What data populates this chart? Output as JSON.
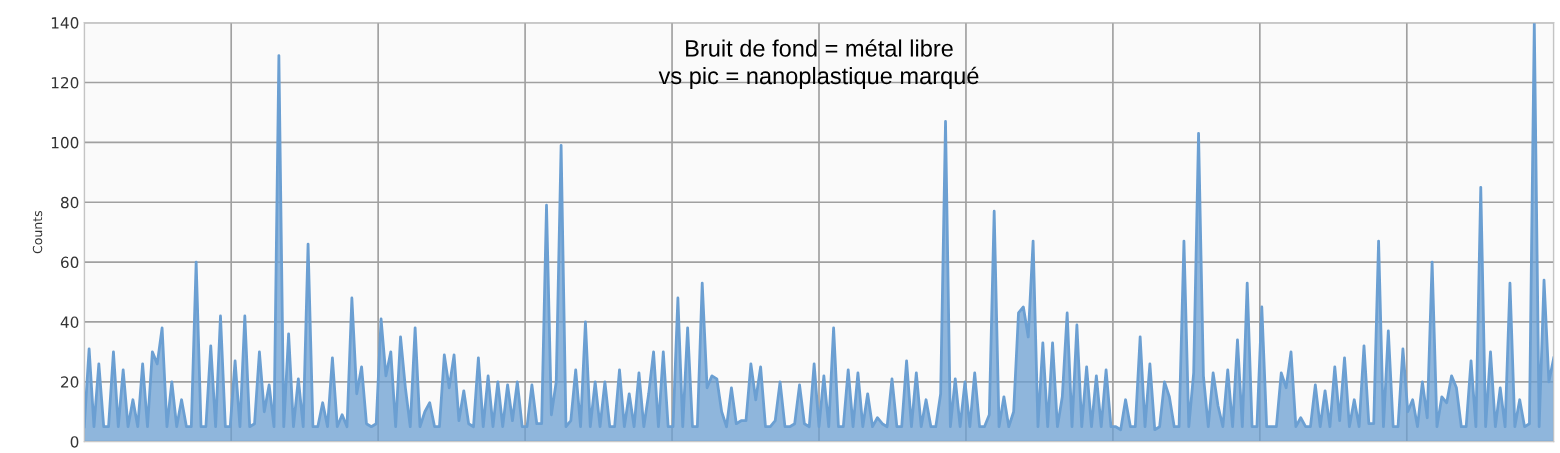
{
  "chart_data": {
    "type": "area",
    "ylabel": "Counts",
    "annotations": [
      "Bruit de fond = métal libre\nvs pic = nanoplastique marqué"
    ],
    "categories": [
      null,
      null,
      null,
      null,
      null,
      null,
      null,
      null,
      null,
      null,
      null,
      null,
      null,
      null,
      null,
      null,
      null,
      null,
      null,
      null,
      null,
      null,
      null,
      null,
      null,
      null,
      null,
      null,
      null,
      null,
      null,
      null,
      null,
      null,
      null,
      null,
      null,
      null,
      null,
      null,
      null,
      null,
      null,
      null,
      null,
      null,
      null,
      null,
      null,
      null,
      null,
      null,
      null,
      null,
      null,
      null,
      null,
      null,
      null,
      null,
      null,
      null,
      null,
      null,
      null,
      null,
      null,
      null,
      null,
      null,
      null,
      null,
      null,
      null,
      null,
      null,
      null,
      null,
      null,
      null,
      null,
      null,
      null,
      null,
      null,
      null,
      null,
      null,
      null,
      null,
      null,
      null,
      null,
      null,
      null,
      null,
      null,
      null,
      null,
      null,
      null,
      null,
      null,
      null,
      null,
      null,
      null,
      null,
      null,
      null,
      null,
      null,
      null,
      null,
      null,
      null,
      null,
      null,
      null,
      null,
      null,
      null,
      null,
      null,
      null,
      null,
      null,
      null,
      null,
      null,
      null,
      null,
      null,
      null,
      null,
      null,
      null,
      null,
      null,
      null,
      null,
      null,
      null,
      null,
      null,
      null,
      null,
      null,
      null,
      null,
      null,
      null,
      null,
      null,
      null,
      null,
      null,
      null,
      null,
      null,
      null,
      null,
      null,
      null,
      null,
      null,
      null,
      null,
      null,
      null,
      null,
      null,
      null,
      null,
      null,
      null,
      null,
      null,
      null,
      null,
      null,
      null,
      null,
      null,
      null,
      null,
      null,
      null,
      null,
      null,
      null,
      null,
      null,
      null,
      null,
      null,
      null,
      null,
      null,
      null,
      null,
      null,
      null,
      null,
      null,
      null,
      null,
      null,
      null,
      null,
      null,
      null,
      null,
      null,
      null,
      null,
      null,
      null,
      null,
      null,
      null,
      null,
      null,
      null,
      null,
      null,
      null,
      null,
      null,
      null,
      null,
      null,
      null,
      null,
      null,
      null,
      null,
      null,
      null,
      null,
      null,
      null,
      null,
      null,
      null,
      null,
      null,
      null,
      null,
      null,
      null,
      null,
      null,
      null,
      null,
      null,
      null,
      null,
      null,
      null,
      null,
      null,
      null,
      null,
      null,
      null,
      null,
      null,
      null,
      null,
      null,
      null,
      null,
      null,
      null,
      null,
      null,
      null,
      null,
      null,
      null,
      null,
      null,
      null,
      null,
      null,
      null,
      null,
      null,
      null,
      null,
      null,
      null,
      null,
      null,
      null,
      null,
      null,
      null,
      null,
      null,
      null,
      null
    ],
    "series": [
      {
        "color": "#6b9fd2",
        "values": [
          5,
          31,
          5,
          26,
          5,
          5,
          30,
          5,
          24,
          5,
          14,
          5,
          26,
          5,
          30,
          26,
          38,
          5,
          20,
          5,
          14,
          5,
          5,
          60,
          5,
          5,
          32,
          5,
          42,
          5,
          5,
          27,
          5,
          42,
          5,
          6,
          30,
          10,
          19,
          5,
          129,
          5,
          36,
          5,
          21,
          5,
          66,
          5,
          5,
          13,
          5,
          28,
          5,
          9,
          5,
          48,
          16,
          25,
          6,
          5,
          6,
          41,
          22,
          30,
          5,
          35,
          18,
          5,
          38,
          5,
          10,
          13,
          5,
          5,
          29,
          18,
          29,
          7,
          17,
          6,
          5,
          28,
          5,
          22,
          5,
          20,
          5,
          19,
          7,
          20,
          5,
          5,
          19,
          6,
          6,
          79,
          9,
          20,
          99,
          5,
          7,
          24,
          5,
          40,
          5,
          20,
          5,
          20,
          5,
          5,
          24,
          5,
          16,
          5,
          23,
          5,
          16,
          30,
          5,
          30,
          5,
          5,
          48,
          5,
          38,
          5,
          5,
          53,
          18,
          22,
          21,
          10,
          5,
          18,
          6,
          7,
          7,
          26,
          14,
          25,
          5,
          5,
          7,
          20,
          5,
          5,
          6,
          19,
          6,
          5,
          26,
          5,
          22,
          5,
          38,
          5,
          5,
          24,
          5,
          23,
          5,
          16,
          5,
          8,
          6,
          5,
          21,
          5,
          5,
          27,
          5,
          23,
          5,
          14,
          5,
          5,
          16,
          107,
          5,
          21,
          5,
          20,
          5,
          23,
          5,
          5,
          9,
          77,
          5,
          15,
          5,
          10,
          43,
          45,
          35,
          67,
          5,
          33,
          5,
          33,
          5,
          15,
          43,
          5,
          39,
          5,
          25,
          5,
          22,
          5,
          24,
          5,
          5,
          4,
          14,
          5,
          5,
          35,
          5,
          26,
          4,
          5,
          20,
          15,
          5,
          5,
          67,
          5,
          23,
          103,
          22,
          5,
          23,
          12,
          5,
          24,
          5,
          34,
          5,
          53,
          5,
          5,
          45,
          5,
          5,
          5,
          23,
          18,
          30,
          5,
          8,
          5,
          5,
          19,
          5,
          17,
          5,
          25,
          7,
          28,
          5,
          14,
          5,
          32,
          6,
          6,
          67,
          5,
          37,
          5,
          5,
          31,
          10,
          14,
          5,
          20,
          8,
          60,
          5,
          15,
          13,
          22,
          18,
          5,
          5,
          27,
          5,
          85,
          5,
          30,
          5,
          18,
          5,
          53,
          5,
          14,
          5,
          6,
          140,
          5,
          54,
          20,
          28
        ]
      }
    ],
    "ylim": [
      0,
      140
    ],
    "yticks": [
      0,
      20,
      40,
      60,
      80,
      100,
      120,
      140
    ],
    "grid": true,
    "tick_labels": "y"
  }
}
